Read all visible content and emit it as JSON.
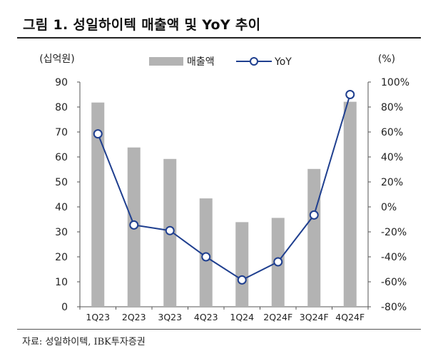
{
  "page": {
    "title": "그림 1. 성일하이텍 매출액 및 YoY 추이",
    "source": "자료: 성일하이텍, IBK투자증권"
  },
  "chart_data": {
    "type": "bar",
    "categories": [
      "1Q23",
      "2Q23",
      "3Q23",
      "4Q23",
      "1Q24",
      "2Q24F",
      "3Q24F",
      "4Q24F"
    ],
    "series": [
      {
        "name": "매출액",
        "type": "bar",
        "axis": "left",
        "color": "#b3b3b3",
        "values": [
          81.8,
          63.8,
          59.2,
          43.4,
          33.9,
          35.6,
          55.2,
          82.1
        ]
      },
      {
        "name": "YoY",
        "type": "line",
        "axis": "right",
        "color": "#1f3f8f",
        "values": [
          58.5,
          -14.5,
          -19.0,
          -40.0,
          -58.5,
          -44.0,
          -6.5,
          90.0
        ]
      }
    ],
    "y_left": {
      "unit_label": "(십억원)",
      "ylim": [
        0,
        90
      ],
      "ticks": [
        "0",
        "10",
        "20",
        "30",
        "40",
        "50",
        "60",
        "70",
        "80",
        "90"
      ]
    },
    "y_right": {
      "unit_label": "(%)",
      "ylim": [
        -80,
        100
      ],
      "ticks": [
        "-80%",
        "-60%",
        "-40%",
        "-20%",
        "0%",
        "20%",
        "40%",
        "60%",
        "80%",
        "100%"
      ]
    },
    "legend": {
      "placement": "top-center",
      "items": [
        "매출액",
        "YoY"
      ]
    },
    "grid": false
  }
}
